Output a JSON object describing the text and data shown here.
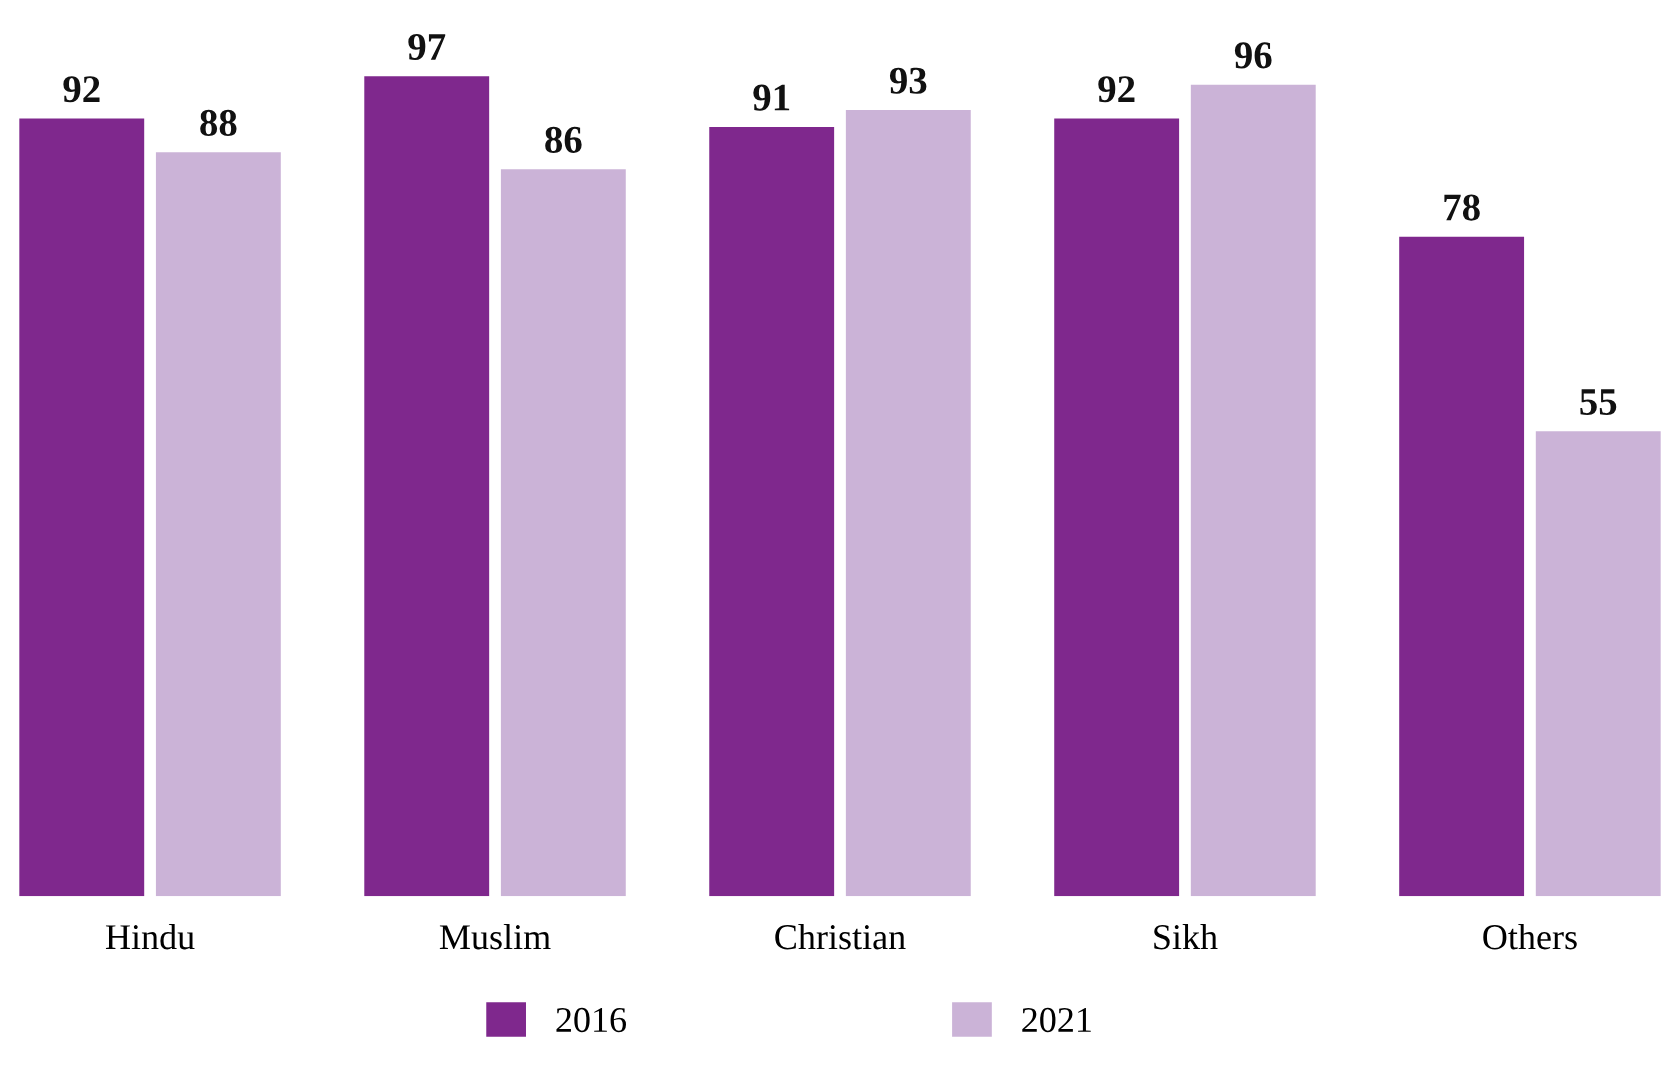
{
  "chart_data": {
    "type": "bar",
    "categories": [
      "Hindu",
      "Muslim",
      "Christian",
      "Sikh",
      "Others"
    ],
    "series": [
      {
        "name": "2016",
        "color": "#7f288d",
        "values": [
          92,
          97,
          91,
          92,
          78
        ]
      },
      {
        "name": "2021",
        "color": "#cbb3d7",
        "values": [
          88,
          86,
          93,
          96,
          55
        ]
      }
    ],
    "data_labels": true,
    "grid": false,
    "legend": "bottom",
    "tick_labels": "x"
  }
}
